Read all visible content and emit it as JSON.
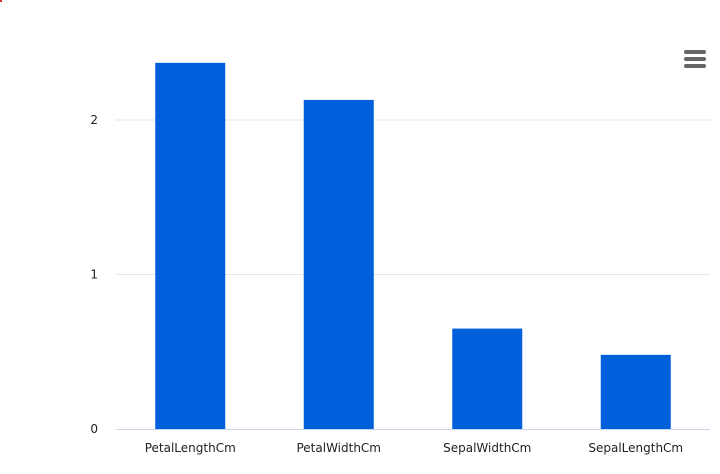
{
  "chart_data": {
    "type": "bar",
    "categories": [
      "PetalLengthCm",
      "PetalWidthCm",
      "SepalWidthCm",
      "SepalLengthCm"
    ],
    "values": [
      2.37,
      2.13,
      0.65,
      0.48
    ],
    "title": "",
    "xlabel": "",
    "ylabel": "",
    "ylim": [
      0,
      2.5
    ],
    "yticks": [
      0,
      1,
      2
    ],
    "grid": true,
    "legend": "none"
  },
  "colors": {
    "bar": "#005fdb",
    "grid": "#e6e6e6",
    "axis": "#ccd6eb",
    "menu_icon": "#666666"
  },
  "icons": {
    "menu": "hamburger-menu-icon"
  }
}
